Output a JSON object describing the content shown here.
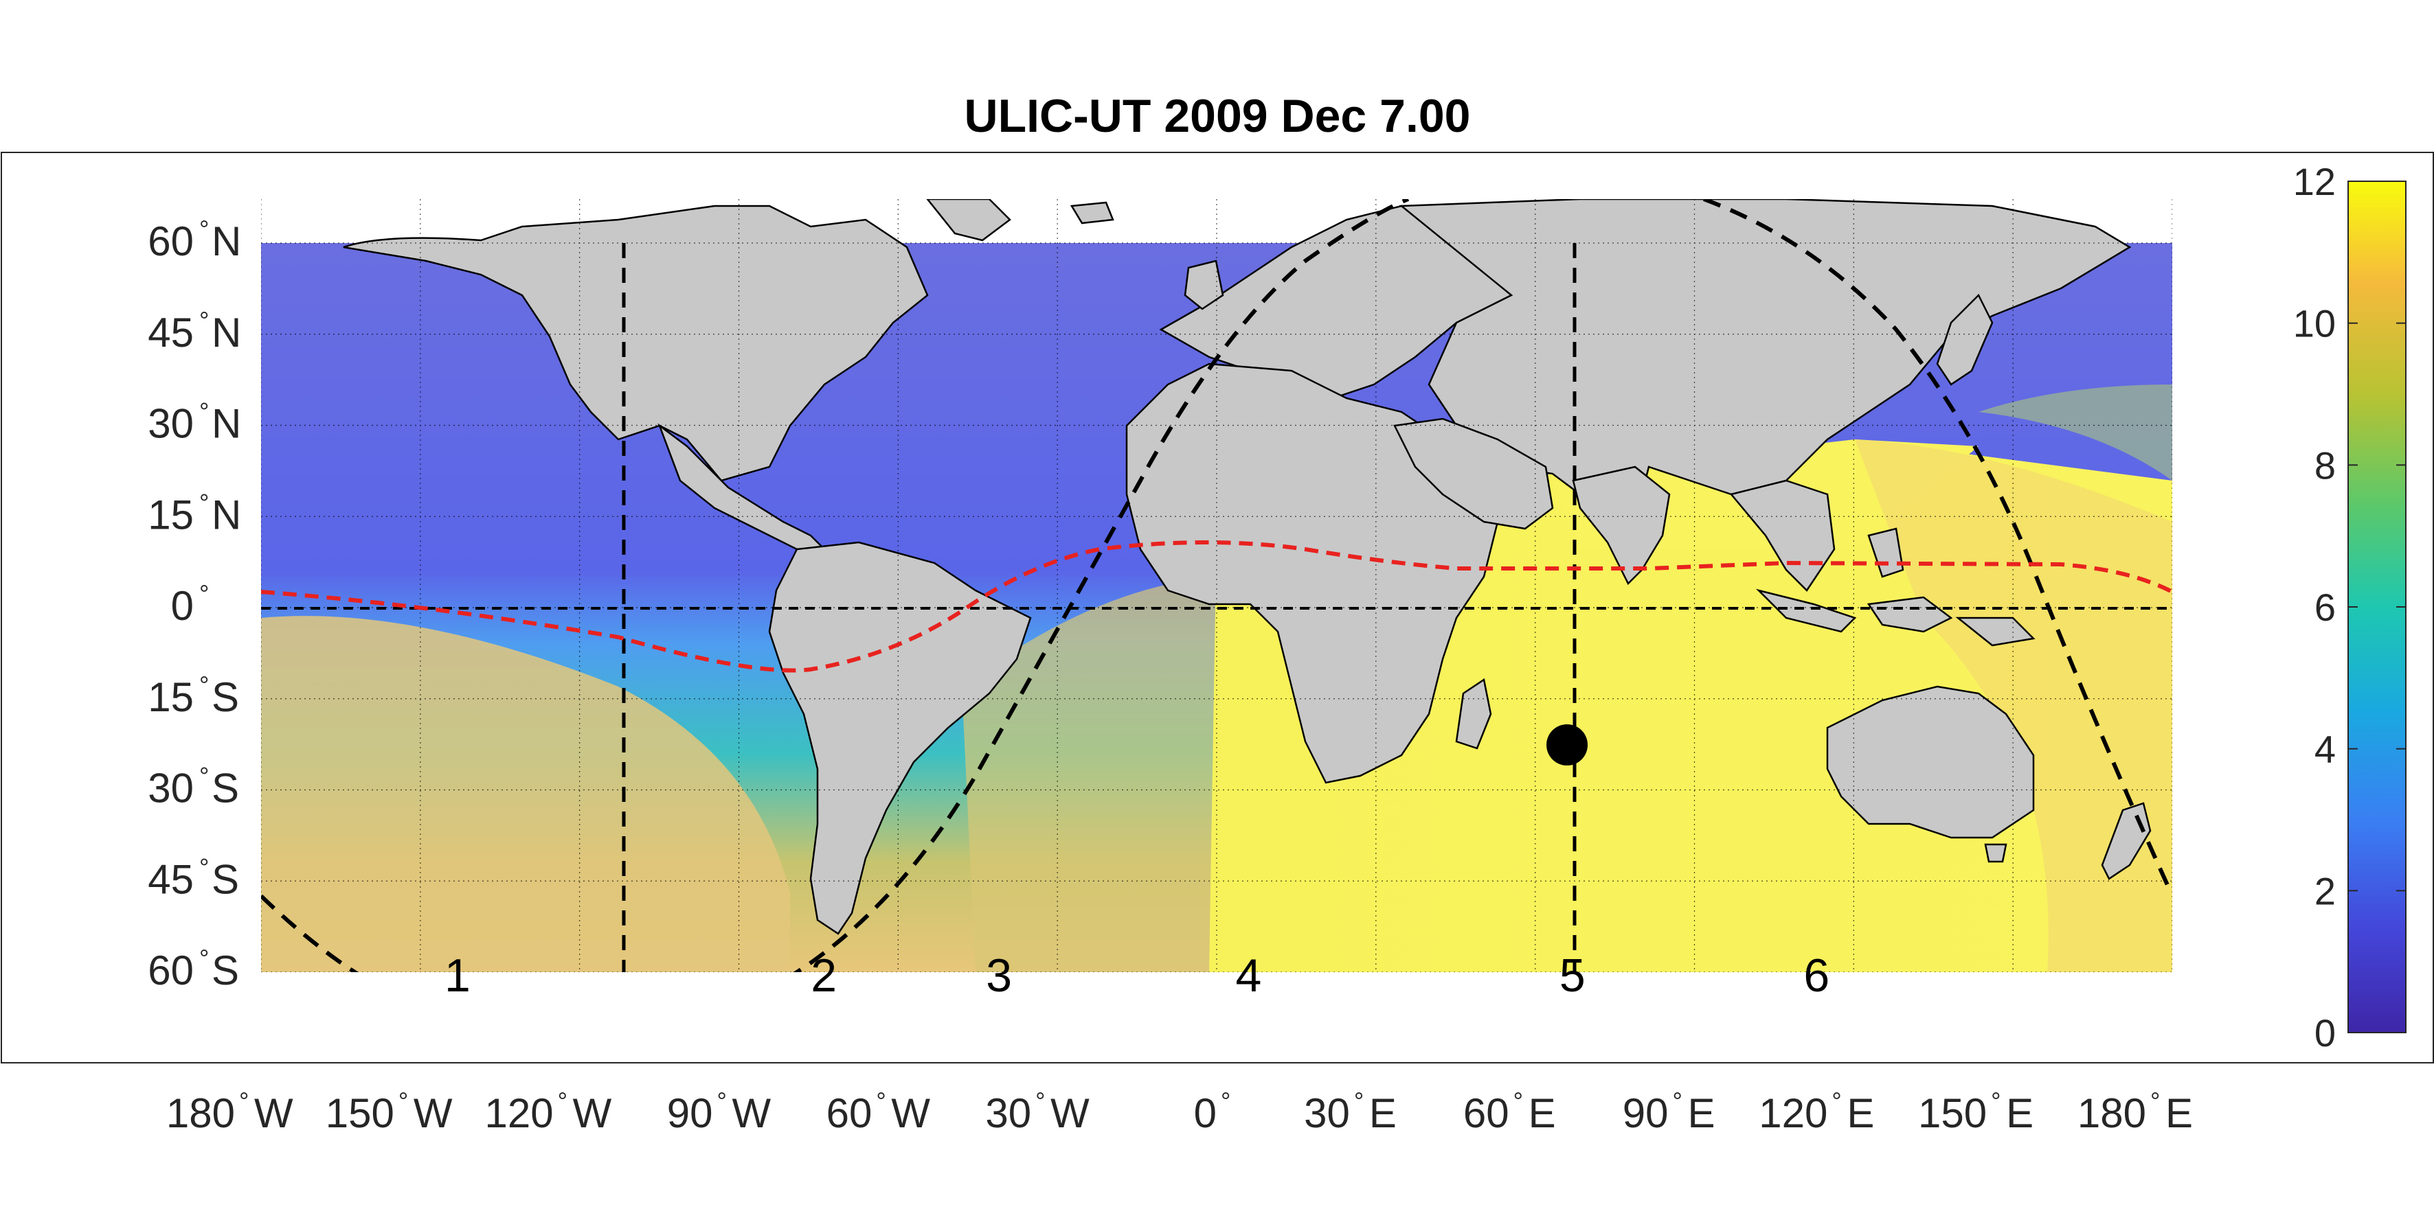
{
  "title": "ULIC-UT 2009 Dec  7.00",
  "lat_labels": [
    {
      "deg": "60",
      "hemi": "N"
    },
    {
      "deg": "45",
      "hemi": "N"
    },
    {
      "deg": "30",
      "hemi": "N"
    },
    {
      "deg": "15",
      "hemi": "N"
    },
    {
      "deg": "0",
      "hemi": ""
    },
    {
      "deg": "15",
      "hemi": "S"
    },
    {
      "deg": "30",
      "hemi": "S"
    },
    {
      "deg": "45",
      "hemi": "S"
    },
    {
      "deg": "60",
      "hemi": "S"
    }
  ],
  "lon_labels": [
    {
      "deg": "180",
      "hemi": "W"
    },
    {
      "deg": "150",
      "hemi": "W"
    },
    {
      "deg": "120",
      "hemi": "W"
    },
    {
      "deg": "90",
      "hemi": "W"
    },
    {
      "deg": "60",
      "hemi": "W"
    },
    {
      "deg": "30",
      "hemi": "W"
    },
    {
      "deg": "0",
      "hemi": ""
    },
    {
      "deg": "30",
      "hemi": "E"
    },
    {
      "deg": "60",
      "hemi": "E"
    },
    {
      "deg": "90",
      "hemi": "E"
    },
    {
      "deg": "120",
      "hemi": "E"
    },
    {
      "deg": "150",
      "hemi": "E"
    },
    {
      "deg": "180",
      "hemi": "E"
    }
  ],
  "zone_numbers": [
    "1",
    "2",
    "3",
    "4",
    "5",
    "6"
  ],
  "colorbar": {
    "ticks": [
      "0",
      "2",
      "4",
      "6",
      "8",
      "10",
      "12"
    ],
    "min": 0,
    "max": 12
  },
  "subsolar_point": {
    "lon": 66,
    "lat": -22.6
  },
  "colors": {
    "land": "#c8c8c8",
    "coast": "#000000",
    "terminator": "#000000",
    "equator_line": "#000000",
    "red_curve": "#e8221f",
    "marker": "#000000",
    "cmap_low": "#3e26a8",
    "cmap_mid": "#1fc7b0",
    "cmap_high": "#f9fb0e"
  }
}
